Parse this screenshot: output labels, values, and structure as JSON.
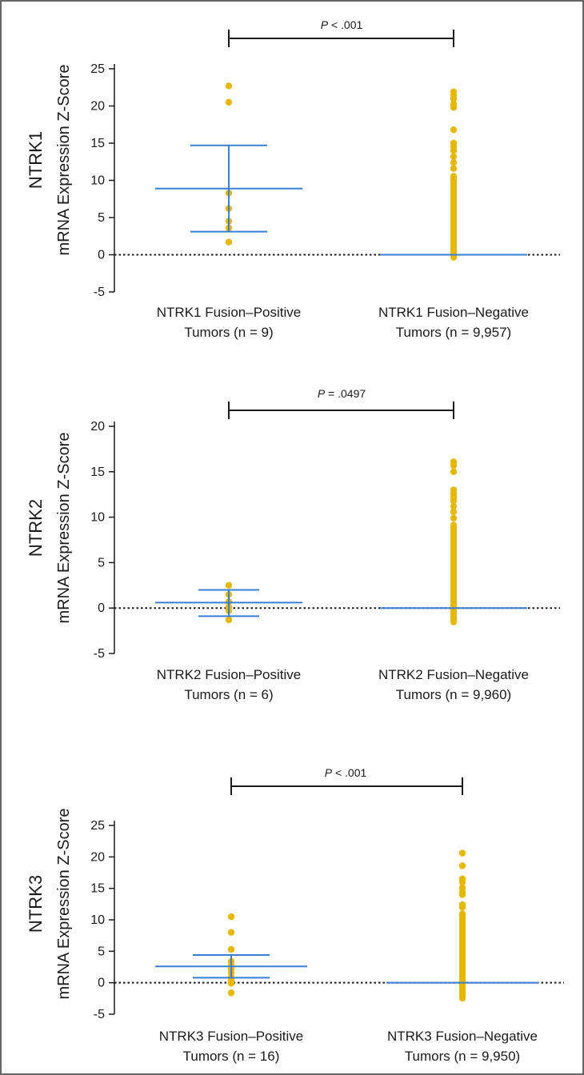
{
  "chart_data": [
    {
      "type": "scatter",
      "gene": "NTRK1",
      "ylabel": "mRNA Expression Z-Score",
      "ylim": [
        -5,
        25
      ],
      "yticks": [
        25,
        20,
        15,
        10,
        5,
        0,
        -5
      ],
      "reference_line": 0,
      "pvalue": {
        "prefix": "P",
        "text": " < .001"
      },
      "groups": [
        {
          "label_line1": "NTRK1 Fusion–Positive",
          "label_line2": "Tumors (n = 9)",
          "mean": 8.9,
          "upper": 14.7,
          "lower": 3.1,
          "points": [
            22.7,
            20.5,
            8.3,
            6.2,
            4.5,
            3.6,
            1.7
          ],
          "column": null
        },
        {
          "label_line1": "NTRK1 Fusion–Negative",
          "label_line2": "Tumors (n = 9,957)",
          "mean": 0.0,
          "upper": null,
          "lower": null,
          "points": [
            21.9,
            21.4,
            20.9,
            20.2,
            19.8,
            16.8,
            15.0,
            14.5,
            14.0,
            13.2,
            12.4,
            11.6
          ],
          "column": [
            -0.8,
            11.0
          ]
        }
      ]
    },
    {
      "type": "scatter",
      "gene": "NTRK2",
      "ylabel": "mRNA Expression Z-Score",
      "ylim": [
        -5,
        20
      ],
      "yticks": [
        20,
        15,
        10,
        5,
        0,
        -5
      ],
      "reference_line": 0,
      "pvalue": {
        "prefix": "P",
        "text": " = .0497"
      },
      "groups": [
        {
          "label_line1": "NTRK2 Fusion–Positive",
          "label_line2": "Tumors (n = 6)",
          "mean": 0.6,
          "upper": 2.0,
          "lower": -0.9,
          "points": [
            2.5,
            1.5,
            0.7,
            0.1,
            -0.3,
            -1.3
          ],
          "column": null
        },
        {
          "label_line1": "NTRK2 Fusion–Negative",
          "label_line2": "Tumors (n = 9,960)",
          "mean": 0.0,
          "upper": null,
          "lower": null,
          "points": [
            16.1,
            15.7,
            15.0,
            13.0,
            12.6,
            12.2,
            11.8,
            11.2,
            10.6,
            9.9
          ],
          "column": [
            -1.9,
            9.5
          ]
        }
      ]
    },
    {
      "type": "scatter",
      "gene": "NTRK3",
      "ylabel": "mRNA Expression Z-Score",
      "ylim": [
        -5,
        25
      ],
      "yticks": [
        25,
        20,
        15,
        10,
        5,
        0,
        -5
      ],
      "reference_line": 0,
      "pvalue": {
        "prefix": "P",
        "text": " < .001"
      },
      "groups": [
        {
          "label_line1": "NTRK3 Fusion–Positive",
          "label_line2": "Tumors (n = 16)",
          "mean": 2.6,
          "upper": 4.4,
          "lower": 0.8,
          "points": [
            10.5,
            8.0,
            5.3,
            3.4,
            2.8,
            2.2,
            1.6,
            0.9,
            0.4,
            -0.1,
            -1.6
          ],
          "column": null
        },
        {
          "label_line1": "NTRK3 Fusion–Negative",
          "label_line2": "Tumors (n = 9,950)",
          "mean": 0.0,
          "upper": null,
          "lower": null,
          "points": [
            20.6,
            18.6,
            16.5,
            16.0,
            15.1,
            14.4,
            14.0,
            12.4,
            12.0
          ],
          "column": [
            -3.0,
            11.5
          ]
        }
      ]
    }
  ],
  "colors": {
    "points": "#e6b800",
    "errorbar": "#3a7fd5",
    "axis": "#1a1a1a",
    "frame": "#333333"
  }
}
